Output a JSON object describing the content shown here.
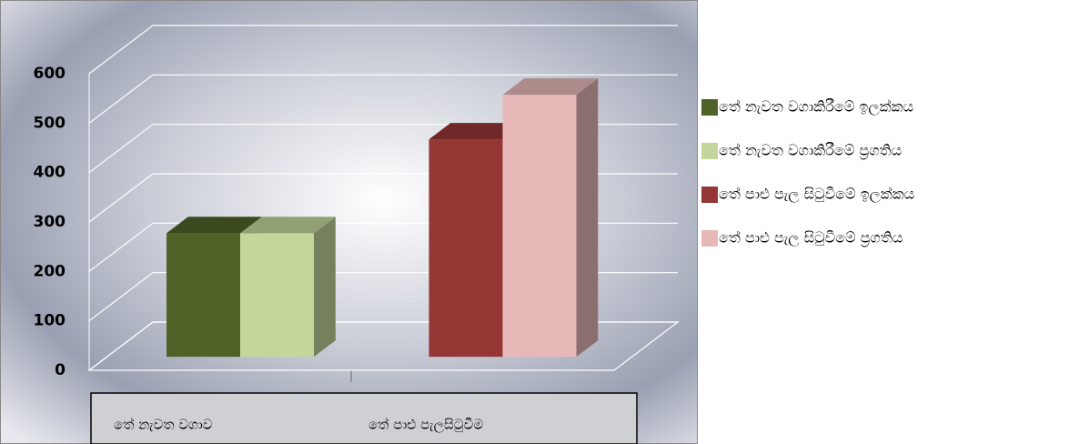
{
  "chart_data": {
    "type": "bar3d",
    "categories": [
      "තේ නැවත වගාව",
      "තේ පාළු පැලසිටුවීම"
    ],
    "series": [
      {
        "name": "තේ නැවත වගාකිරීමේ ඉලක්කය",
        "color": "#4f6228",
        "values": [
          250,
          null
        ]
      },
      {
        "name": "තේ නැවත වගාකිරීමේ ප්‍රගතිය",
        "color": "#c3d69b",
        "values": [
          250,
          null
        ]
      },
      {
        "name": "තේ පාළු පැල සිටුවීමේ ඉලක්කය",
        "color": "#953735",
        "values": [
          null,
          440
        ]
      },
      {
        "name": "තේ පාළු පැල සිටුවීමේ ප්‍රගතිය",
        "color": "#e6b9b8",
        "values": [
          null,
          530
        ]
      }
    ],
    "ylim": [
      0,
      600
    ],
    "yticks": [
      0,
      100,
      200,
      300,
      400,
      500,
      600
    ],
    "grid": true,
    "legend": "right"
  }
}
